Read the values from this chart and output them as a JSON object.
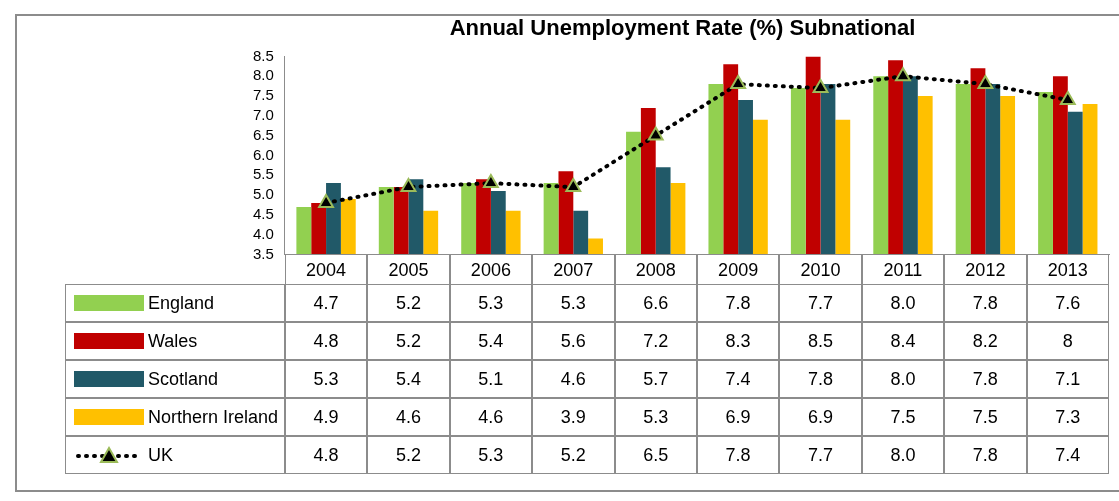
{
  "chart_data": {
    "type": "bar",
    "title": "Annual Unemployment Rate (%) Subnational",
    "categories": [
      "2004",
      "2005",
      "2006",
      "2007",
      "2008",
      "2009",
      "2010",
      "2011",
      "2012",
      "2013"
    ],
    "series": [
      {
        "name": "England",
        "color": "#92d050",
        "values": [
          4.7,
          5.2,
          5.3,
          5.3,
          6.6,
          7.8,
          7.7,
          8.0,
          7.8,
          7.6
        ],
        "value_labels": [
          "4.7",
          "5.2",
          "5.3",
          "5.3",
          "6.6",
          "7.8",
          "7.7",
          "8.0",
          "7.8",
          "7.6"
        ]
      },
      {
        "name": "Wales",
        "color": "#c00000",
        "values": [
          4.8,
          5.2,
          5.4,
          5.6,
          7.2,
          8.3,
          8.5,
          8.4,
          8.2,
          8
        ],
        "value_labels": [
          "4.8",
          "5.2",
          "5.4",
          "5.6",
          "7.2",
          "8.3",
          "8.5",
          "8.4",
          "8.2",
          "8"
        ]
      },
      {
        "name": "Scotland",
        "color": "#215968",
        "values": [
          5.3,
          5.4,
          5.1,
          4.6,
          5.7,
          7.4,
          7.8,
          8.0,
          7.8,
          7.1
        ],
        "value_labels": [
          "5.3",
          "5.4",
          "5.1",
          "4.6",
          "5.7",
          "7.4",
          "7.8",
          "8.0",
          "7.8",
          "7.1"
        ]
      },
      {
        "name": "Northern Ireland",
        "color": "#ffc000",
        "values": [
          4.9,
          4.6,
          4.6,
          3.9,
          5.3,
          6.9,
          6.9,
          7.5,
          7.5,
          7.3
        ],
        "value_labels": [
          "4.9",
          "4.6",
          "4.6",
          "3.9",
          "5.3",
          "6.9",
          "6.9",
          "7.5",
          "7.5",
          "7.3"
        ]
      },
      {
        "name": "UK",
        "type": "line",
        "color": "#000000",
        "marker": "triangle",
        "line_style": "dotted",
        "values": [
          4.8,
          5.2,
          5.3,
          5.2,
          6.5,
          7.8,
          7.7,
          8.0,
          7.8,
          7.4
        ],
        "value_labels": [
          "4.8",
          "5.2",
          "5.3",
          "5.2",
          "6.5",
          "7.8",
          "7.7",
          "8.0",
          "7.8",
          "7.4"
        ]
      }
    ],
    "ylim": [
      3.5,
      8.5
    ],
    "yticks": [
      3.5,
      {
        "value": 4,
        "label": "4.0"
      },
      4.5,
      {
        "value": 5,
        "label": "5.0"
      },
      5.5,
      {
        "value": 6,
        "label": "6.0"
      },
      6.5,
      {
        "value": 7,
        "label": "7.0"
      },
      7.5,
      {
        "value": 8,
        "label": "8.0"
      },
      8.5
    ],
    "grid": false,
    "legend": "bottom"
  }
}
